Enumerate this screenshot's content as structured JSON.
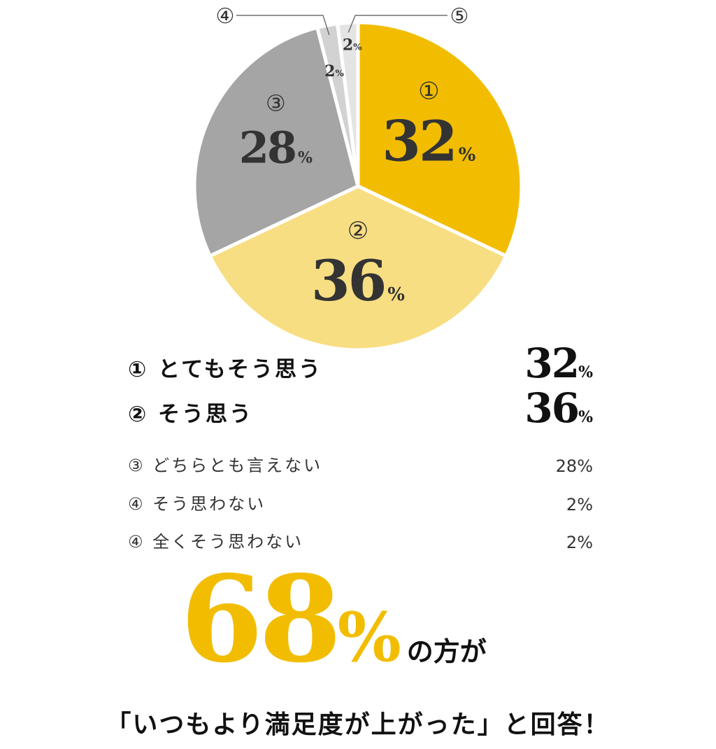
{
  "chart_data": {
    "type": "pie",
    "slices": [
      {
        "marker": "①",
        "value": 32,
        "label": "とてもそう思う",
        "color": "#F2BD00"
      },
      {
        "marker": "②",
        "value": 36,
        "label": "そう思う",
        "color": "#F8DE82"
      },
      {
        "marker": "③",
        "value": 28,
        "label": "どちらとも言えない",
        "color": "#A5A5A5"
      },
      {
        "marker": "④",
        "value": 2,
        "label": "そう思わない",
        "color": "#D2D2D2"
      },
      {
        "marker": "⑤",
        "value": 2,
        "label": "全くそう思わない",
        "color": "#E4E4E4"
      }
    ],
    "pct_symbol": "%"
  },
  "legend": [
    {
      "marker": "①",
      "label": "とてもそう思う",
      "value": "32",
      "pct": "%"
    },
    {
      "marker": "②",
      "label": "そう思う",
      "value": "36",
      "pct": "%"
    },
    {
      "marker": "③",
      "label": "どちらとも言えない",
      "value": "28%"
    },
    {
      "marker": "④",
      "label": "そう思わない",
      "value": "2%"
    },
    {
      "marker": "④",
      "label": "全くそう思わない",
      "value": "2%"
    }
  ],
  "headline": {
    "number": "68",
    "pct": "%",
    "suffix": "の方が"
  },
  "footer": "「いつもより満足度が上がった」と回答！"
}
